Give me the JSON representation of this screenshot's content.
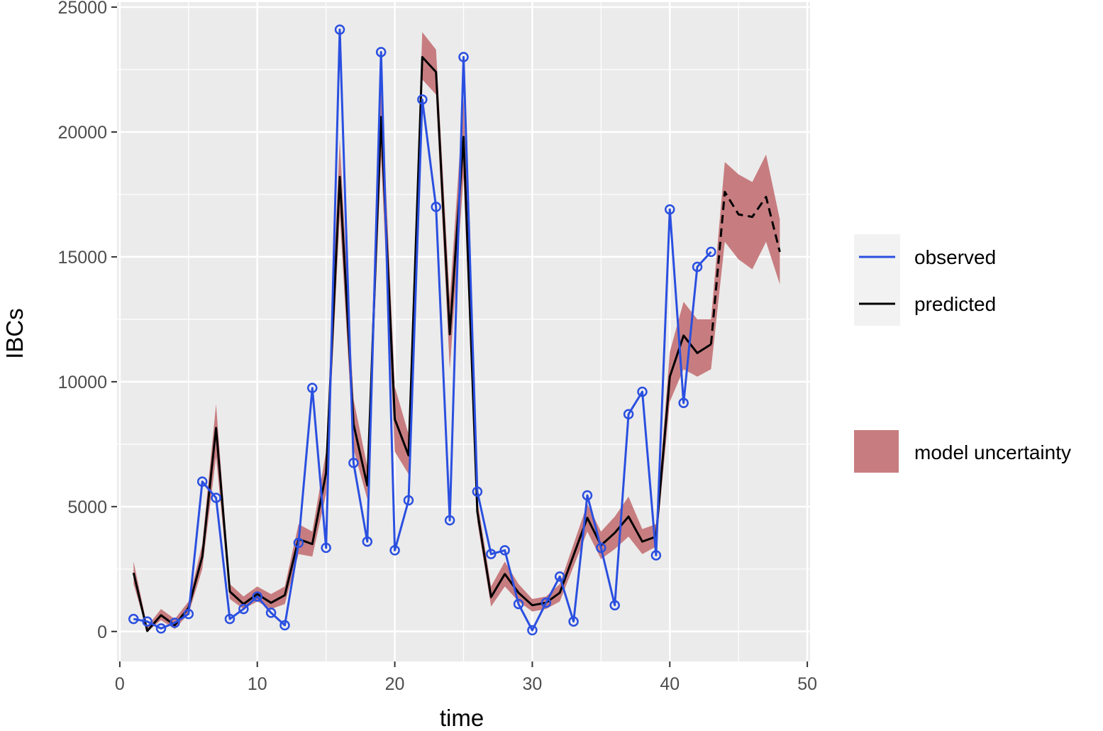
{
  "chart_data": {
    "type": "line",
    "xlabel": "time",
    "ylabel": "IBCs",
    "xlim": [
      -0.2,
      50.2
    ],
    "ylim": [
      -1200,
      25200
    ],
    "x_ticks": [
      0,
      10,
      20,
      30,
      40,
      50
    ],
    "y_ticks": [
      0,
      5000,
      10000,
      15000,
      20000,
      25000
    ],
    "grid": true,
    "legend_position": "right",
    "colors": {
      "observed": "#2a4fe0",
      "predicted": "#000000",
      "uncertainty": "#c77d80",
      "panel": "#ebebeb",
      "grid": "#ffffff"
    },
    "legend": {
      "observed": "observed",
      "predicted": "predicted",
      "uncertainty": "model uncertainty"
    },
    "series": [
      {
        "name": "observed",
        "x": [
          1,
          2,
          3,
          4,
          5,
          6,
          7,
          8,
          9,
          10,
          11,
          12,
          13,
          14,
          15,
          16,
          17,
          18,
          19,
          20,
          21,
          22,
          23,
          24,
          25,
          26,
          27,
          28,
          29,
          30,
          31,
          32,
          33,
          34,
          35,
          36,
          37,
          38,
          39,
          40,
          41,
          42,
          43
        ],
        "values": [
          500,
          400,
          120,
          350,
          700,
          6000,
          5350,
          500,
          900,
          1400,
          750,
          250,
          3550,
          9750,
          3350,
          24100,
          6750,
          3600,
          23200,
          3250,
          5250,
          21300,
          17000,
          4450,
          23000,
          5600,
          3100,
          3250,
          1100,
          50,
          1150,
          2200,
          400,
          5450,
          3350,
          1050,
          8700,
          9600,
          3050,
          16900,
          9150,
          14600,
          15200
        ]
      },
      {
        "name": "predicted",
        "x": [
          1,
          2,
          3,
          4,
          5,
          6,
          7,
          8,
          9,
          10,
          11,
          12,
          13,
          14,
          15,
          16,
          17,
          18,
          19,
          20,
          21,
          22,
          23,
          24,
          25,
          26,
          27,
          28,
          29,
          30,
          31,
          32,
          33,
          34,
          35,
          36,
          37,
          38,
          39,
          40,
          41,
          42,
          43,
          44,
          45,
          46,
          47,
          48
        ],
        "values": [
          2350,
          20,
          650,
          250,
          950,
          3000,
          8150,
          1600,
          1100,
          1500,
          1150,
          1450,
          3700,
          3500,
          6350,
          18200,
          8300,
          5850,
          20600,
          8500,
          7050,
          23000,
          22400,
          11900,
          19800,
          4800,
          1380,
          2300,
          1550,
          1050,
          1150,
          1550,
          3050,
          4550,
          3450,
          3950,
          4600,
          3600,
          3800,
          10200,
          11850,
          11150,
          11500,
          17600,
          16700,
          16600,
          17400,
          15200
        ],
        "forecast_from": 43,
        "lower": [
          1900,
          0,
          450,
          100,
          700,
          2500,
          7000,
          1300,
          900,
          1200,
          900,
          1100,
          3100,
          3000,
          5500,
          16700,
          7300,
          5300,
          19000,
          7200,
          6300,
          22100,
          21500,
          10500,
          18200,
          4400,
          1000,
          1800,
          1200,
          800,
          900,
          1200,
          2600,
          4000,
          2900,
          3300,
          3800,
          3100,
          3400,
          9200,
          10500,
          10200,
          10500,
          15600,
          14900,
          14500,
          15600,
          13900
        ],
        "upper": [
          2800,
          200,
          900,
          500,
          1200,
          3500,
          9100,
          1900,
          1400,
          1800,
          1500,
          1800,
          4300,
          4000,
          7200,
          19700,
          9300,
          6600,
          22200,
          9800,
          7900,
          24000,
          23300,
          13300,
          21400,
          5300,
          1800,
          2800,
          1900,
          1300,
          1400,
          1900,
          3500,
          5100,
          4000,
          4600,
          5400,
          4100,
          4300,
          11200,
          13200,
          12500,
          12500,
          18800,
          18300,
          18000,
          19100,
          16500
        ]
      }
    ]
  }
}
